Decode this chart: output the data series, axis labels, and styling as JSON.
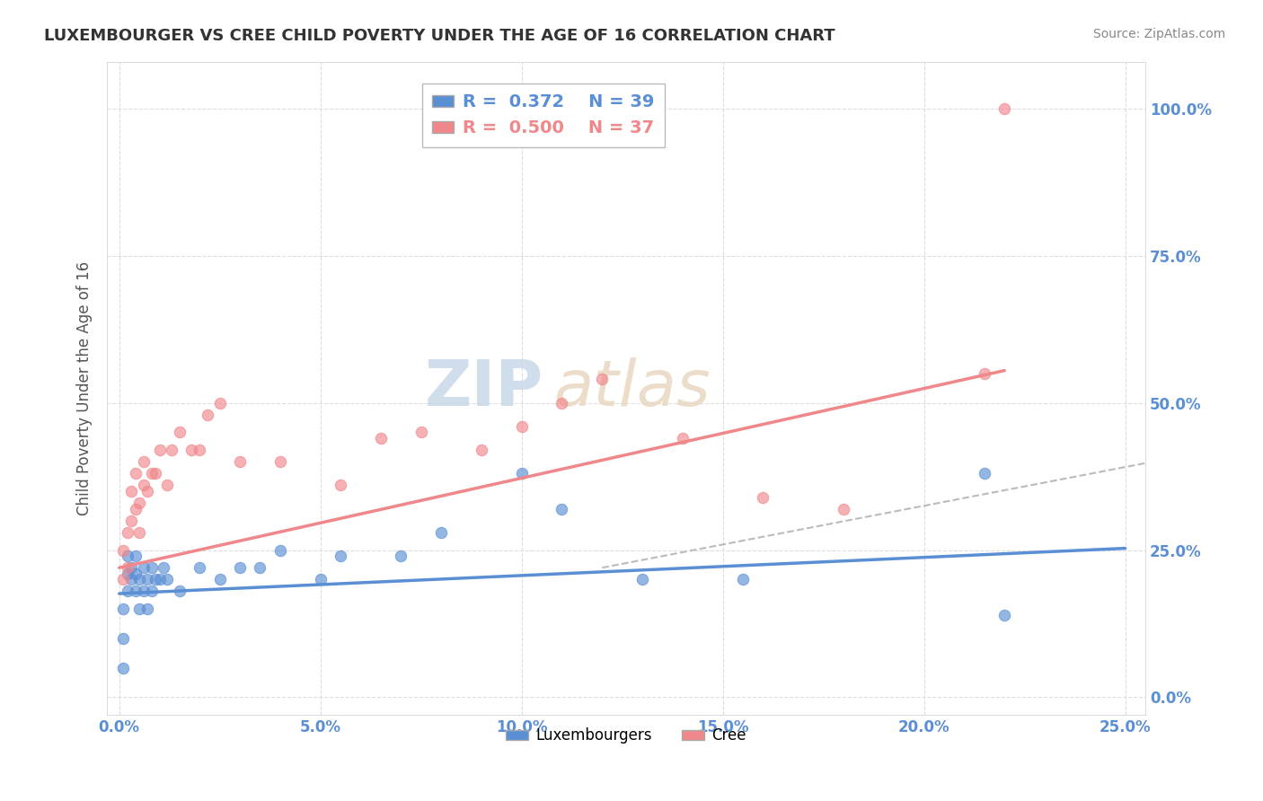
{
  "title": "LUXEMBOURGER VS CREE CHILD POVERTY UNDER THE AGE OF 16 CORRELATION CHART",
  "source": "Source: ZipAtlas.com",
  "ylabel_label": "Child Poverty Under the Age of 16",
  "xlim": [
    -0.003,
    0.255
  ],
  "ylim": [
    -0.03,
    1.08
  ],
  "xtick_vals": [
    0.0,
    0.05,
    0.1,
    0.15,
    0.2,
    0.25
  ],
  "xtick_labels": [
    "0.0%",
    "5.0%",
    "10.0%",
    "15.0%",
    "20.0%",
    "25.0%"
  ],
  "ytick_vals": [
    0.0,
    0.25,
    0.5,
    0.75,
    1.0
  ],
  "ytick_labels": [
    "0.0%",
    "25.0%",
    "50.0%",
    "75.0%",
    "100.0%"
  ],
  "lux_color": "#5B8FD4",
  "cree_color": "#F0878A",
  "lux_R": 0.372,
  "lux_N": 39,
  "cree_R": 0.5,
  "cree_N": 37,
  "lux_scatter_x": [
    0.001,
    0.001,
    0.001,
    0.002,
    0.002,
    0.002,
    0.003,
    0.003,
    0.004,
    0.004,
    0.004,
    0.005,
    0.005,
    0.006,
    0.006,
    0.007,
    0.007,
    0.008,
    0.008,
    0.009,
    0.01,
    0.011,
    0.012,
    0.015,
    0.02,
    0.025,
    0.03,
    0.035,
    0.04,
    0.05,
    0.055,
    0.07,
    0.08,
    0.1,
    0.11,
    0.13,
    0.155,
    0.215,
    0.22
  ],
  "lux_scatter_y": [
    0.05,
    0.1,
    0.15,
    0.18,
    0.21,
    0.24,
    0.2,
    0.22,
    0.18,
    0.21,
    0.24,
    0.15,
    0.2,
    0.18,
    0.22,
    0.15,
    0.2,
    0.18,
    0.22,
    0.2,
    0.2,
    0.22,
    0.2,
    0.18,
    0.22,
    0.2,
    0.22,
    0.22,
    0.25,
    0.2,
    0.24,
    0.24,
    0.28,
    0.38,
    0.32,
    0.2,
    0.2,
    0.38,
    0.14
  ],
  "cree_scatter_x": [
    0.001,
    0.001,
    0.002,
    0.002,
    0.003,
    0.003,
    0.004,
    0.004,
    0.005,
    0.005,
    0.006,
    0.006,
    0.007,
    0.008,
    0.009,
    0.01,
    0.012,
    0.013,
    0.015,
    0.018,
    0.02,
    0.022,
    0.025,
    0.03,
    0.04,
    0.055,
    0.065,
    0.075,
    0.09,
    0.1,
    0.11,
    0.12,
    0.14,
    0.16,
    0.18,
    0.215,
    0.22
  ],
  "cree_scatter_y": [
    0.2,
    0.25,
    0.22,
    0.28,
    0.3,
    0.35,
    0.32,
    0.38,
    0.28,
    0.33,
    0.36,
    0.4,
    0.35,
    0.38,
    0.38,
    0.42,
    0.36,
    0.42,
    0.45,
    0.42,
    0.42,
    0.48,
    0.5,
    0.4,
    0.4,
    0.36,
    0.44,
    0.45,
    0.42,
    0.46,
    0.5,
    0.54,
    0.44,
    0.34,
    0.32,
    0.55,
    1.0
  ],
  "lux_trend": [
    0.0,
    0.25,
    0.176,
    0.253
  ],
  "cree_trend": [
    0.0,
    0.22,
    0.22,
    0.555
  ],
  "dash_line": [
    0.12,
    0.5,
    0.22,
    0.72
  ],
  "background_color": "#FFFFFF",
  "grid_color": "#DDDDDD",
  "watermark_text": "ZIP",
  "watermark_text2": "atlas"
}
